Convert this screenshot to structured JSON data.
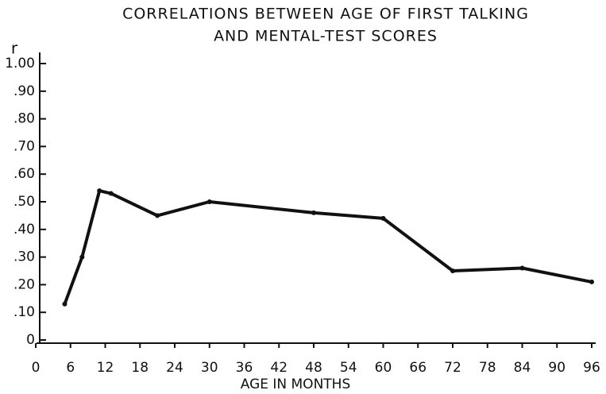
{
  "chart_data": {
    "type": "line",
    "title": "CORRELATIONS BETWEEN AGE OF FIRST TALKING",
    "subtitle": "AND MENTAL-TEST SCORES",
    "x_label": "AGE IN MONTHS",
    "y_label": "r",
    "x": [
      5,
      8,
      11,
      13,
      21,
      30,
      48,
      60,
      72,
      84,
      96
    ],
    "values": [
      0.13,
      0.3,
      0.54,
      0.53,
      0.45,
      0.5,
      0.46,
      0.44,
      0.25,
      0.26,
      0.21
    ],
    "color": "#111111",
    "xlim": [
      0,
      96
    ],
    "xticks": [
      0,
      6,
      12,
      18,
      24,
      30,
      36,
      42,
      48,
      54,
      60,
      66,
      72,
      78,
      84,
      90,
      96
    ],
    "ylim": [
      0,
      1.0
    ],
    "yticks": [
      0,
      {
        "value": 0.1,
        "label": ".10"
      },
      {
        "value": 0.2,
        "label": ".20"
      },
      {
        "value": 0.3,
        "label": ".30"
      },
      {
        "value": 0.4,
        "label": ".40"
      },
      {
        "value": 0.5,
        "label": ".50"
      },
      {
        "value": 0.6,
        "label": ".60"
      },
      {
        "value": 0.7,
        "label": ".70"
      },
      {
        "value": 0.8,
        "label": ".80"
      },
      {
        "value": 0.9,
        "label": ".90"
      },
      {
        "value": 1.0,
        "label": "1.00"
      }
    ],
    "grid": false
  }
}
